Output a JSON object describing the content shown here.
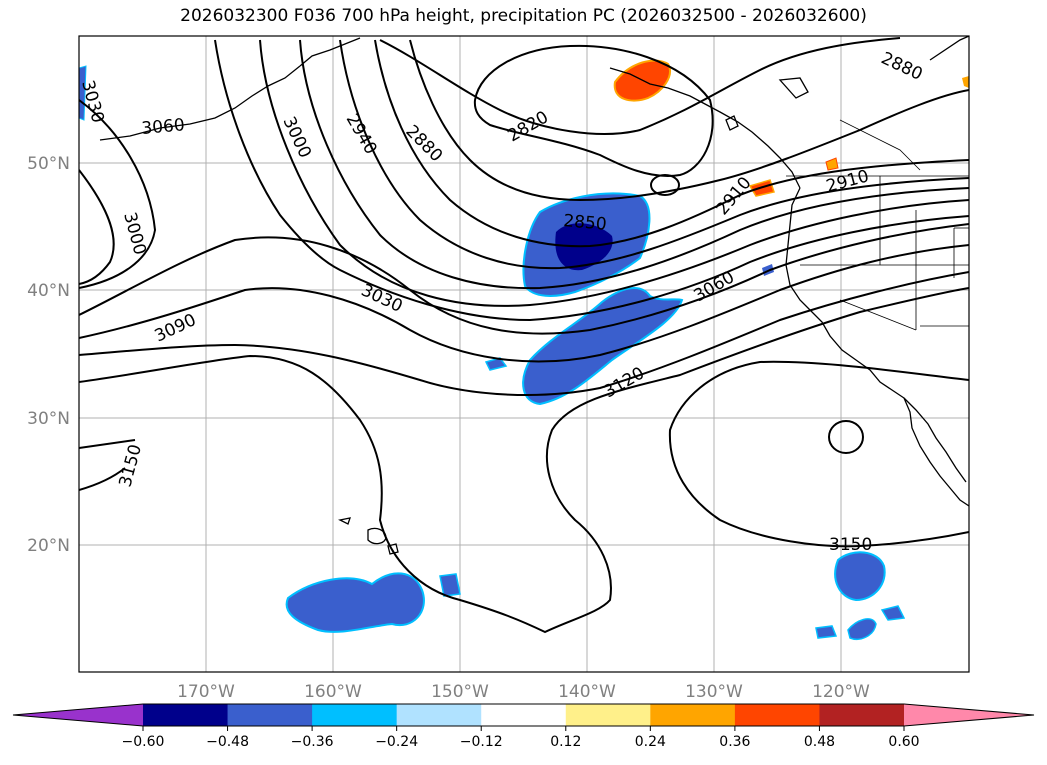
{
  "title": "2026032300 F036 700 hPa height, precipitation PC (2026032500 - 2026032600)",
  "map": {
    "lat_labels": [
      "50°N",
      "40°N",
      "30°N",
      "20°N"
    ],
    "lon_labels": [
      "170°W",
      "160°W",
      "150°W",
      "140°W",
      "130°W",
      "120°W"
    ],
    "grid": true
  },
  "contour_labels": [
    "3030",
    "3060",
    "3000",
    "2940",
    "2880",
    "2820",
    "2880",
    "3000",
    "2850",
    "2910",
    "2910",
    "3030",
    "3060",
    "3090",
    "3120",
    "3150",
    "3150"
  ],
  "colorbar": {
    "tick_labels": [
      "−0.60",
      "−0.48",
      "−0.36",
      "−0.24",
      "−0.12",
      "0.12",
      "0.24",
      "0.36",
      "0.48",
      "0.60"
    ],
    "colors": [
      "#9932cc",
      "#00008b",
      "#3a5fcd",
      "#00bfff",
      "#b0e2ff",
      "#ffffff",
      "#fff08a",
      "#ffa500",
      "#ff4500",
      "#b22222",
      "#ff88aa"
    ]
  }
}
